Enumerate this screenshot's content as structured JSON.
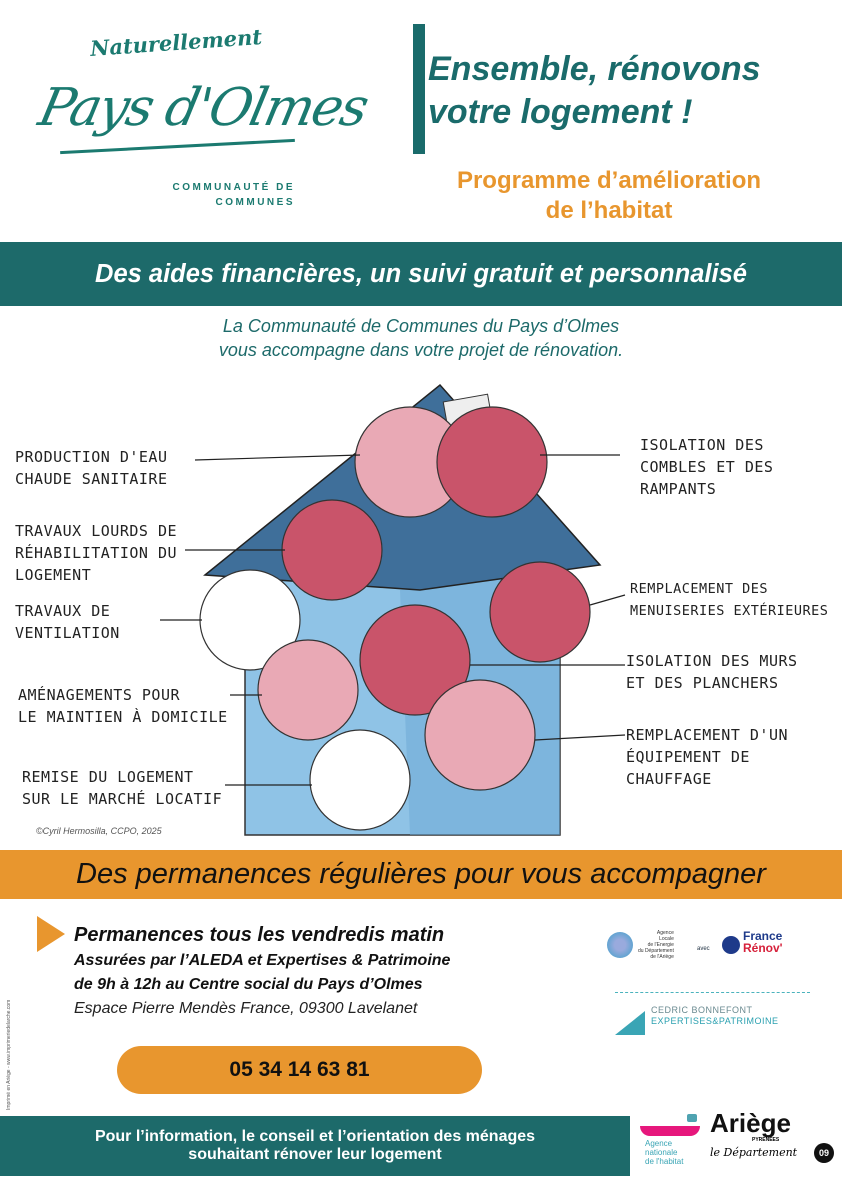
{
  "logo": {
    "tagline": "Naturellement",
    "name": "Pays d'Olmes",
    "subtitle_line1": "COMMUNAUTÉ DE",
    "subtitle_line2": "COMMUNES"
  },
  "header": {
    "title_line1": "Ensemble, rénovons",
    "title_line2": "votre logement !",
    "program_line1": "Programme d’amélioration",
    "program_line2": "de l’habitat"
  },
  "banner_top": "Des aides financières, un suivi gratuit et personnalisé",
  "intro": {
    "line1": "La Communauté de Communes du Pays d’Olmes",
    "line2": "vous accompagne dans votre projet de rénovation."
  },
  "illustration": {
    "left_labels": [
      [
        "Production d'eau",
        "chaude sanitaire"
      ],
      [
        "Travaux lourds de",
        "réhabilitation du",
        "logement"
      ],
      [
        "Travaux de",
        "ventilation"
      ],
      [
        "Aménagements pour",
        "le maintien à domicile"
      ],
      [
        "Remise du logement",
        "sur le marché locatif"
      ]
    ],
    "right_labels": [
      [
        "Isolation des",
        "combles et des",
        "rampants"
      ],
      [
        "Remplacement des",
        "menuiseries extérieures"
      ],
      [
        "Isolation des murs",
        "et des planchers"
      ],
      [
        "Remplacement d'un",
        "équipement de",
        "chauffage"
      ]
    ],
    "credit": "©Cyril Hermosilla, CCPO, 2025",
    "colors": {
      "wall": "#8fc3e6",
      "roof": "#3f6f9a",
      "circle": "#c9546a"
    }
  },
  "banner_mid": "Des permanences régulières pour vous accompagner",
  "permanence": {
    "heading": "Permanences tous les vendredis matin",
    "line1": "Assurées par l’ALEDA et Expertises & Patrimoine",
    "line2": "de 9h à 12h au Centre social du Pays d’Olmes",
    "address": "Espace Pierre Mendès France, 09300 Lavelanet",
    "phone": "05 34 14 63 81"
  },
  "partners": {
    "aleda": [
      "Agence",
      "Locale",
      "de l'Energie",
      "du Département",
      "de l'Ariège"
    ],
    "avec": "avec",
    "france_renov": [
      "France",
      "Rénov'"
    ],
    "bonnefont": [
      "CEDRIC BONNEFONT",
      "EXPERTISES&PATRIMOINE"
    ],
    "anah": [
      "Agence",
      "nationale",
      "de l'habitat"
    ],
    "ariege": [
      "Ariège",
      "PYRÉNÉES",
      "le Département",
      "09"
    ]
  },
  "imprint": "Imprimé en Ariège - www.imprimeriedelarche.com",
  "footer": {
    "line1": "Pour l’information, le conseil et l’orientation des ménages",
    "line2": "souhaitant rénover leur logement"
  },
  "colors": {
    "teal": "#1d6a6a",
    "orange": "#e8962e"
  }
}
